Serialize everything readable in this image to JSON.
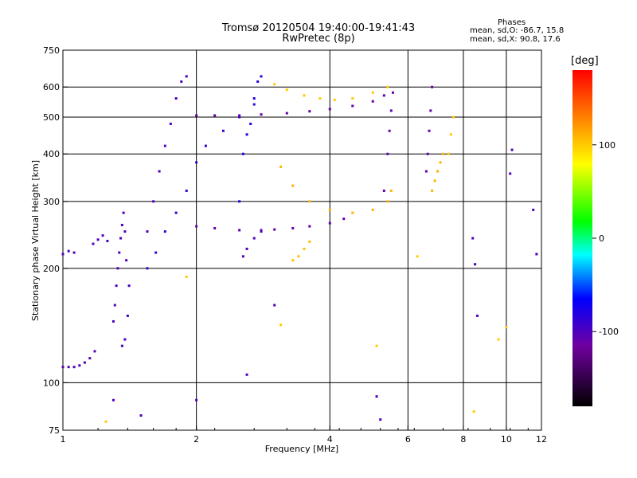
{
  "title": {
    "line1": "Tromsø 20120504 19:40:00-19:41:43",
    "line2": "RwPretec (8p)"
  },
  "phases": {
    "heading": "Phases",
    "o_line": "mean, sd,O: -86.7, 15.8",
    "x_line": "mean, sd,X:  90.8, 17.6"
  },
  "colorbar": {
    "label": "[deg]",
    "ticks": [
      100,
      0,
      -100
    ],
    "range": [
      -180,
      180
    ]
  },
  "chart_data": {
    "type": "scatter",
    "title": "Tromsø 20120504 19:40:00-19:41:43",
    "subtitle": "RwPretec (8p)",
    "xlabel": "Frequency [MHz]",
    "ylabel": "Stationary phase Virtual Height [km]",
    "xscale": "log",
    "yscale": "log",
    "xlim": [
      1,
      12
    ],
    "ylim": [
      75,
      750
    ],
    "xticks": [
      1,
      2,
      4,
      6,
      8,
      10,
      12
    ],
    "yticks": [
      75,
      100,
      200,
      300,
      400,
      500,
      600,
      750
    ],
    "grid": true,
    "colorbar_label": "[deg]",
    "colorbar_range": [
      -180,
      180
    ],
    "colormap": [
      "#000000",
      "#7000a0",
      "#0000ff",
      "#00ffff",
      "#00ff00",
      "#ffff00",
      "#ff8000",
      "#ff0000"
    ],
    "series": [
      {
        "x": [
          1.0,
          1.03,
          1.06,
          1.09,
          1.12,
          1.15,
          1.18
        ],
        "y": [
          110,
          110,
          110,
          111,
          113,
          116,
          121
        ],
        "phase": -105
      },
      {
        "x": [
          1.0,
          1.03,
          1.06,
          1.17,
          1.2,
          1.23,
          1.26
        ],
        "y": [
          218,
          222,
          220,
          232,
          238,
          244,
          236
        ],
        "phase": -100
      },
      {
        "x": [
          1.3,
          1.31,
          1.32,
          1.33,
          1.34,
          1.35,
          1.36,
          1.37,
          1.38,
          1.39
        ],
        "y": [
          145,
          160,
          180,
          200,
          220,
          240,
          260,
          280,
          250,
          210
        ],
        "phase": -100
      },
      {
        "x": [
          1.36,
          1.38,
          1.4,
          1.41
        ],
        "y": [
          125,
          130,
          150,
          180
        ],
        "phase": -95
      },
      {
        "x": [
          1.55,
          1.6,
          1.65,
          1.7,
          1.75,
          1.8,
          1.85,
          1.9
        ],
        "y": [
          250,
          300,
          360,
          420,
          480,
          560,
          620,
          640
        ],
        "phase": -100
      },
      {
        "x": [
          1.55,
          1.62,
          1.7,
          1.8,
          1.9,
          2.0,
          2.1,
          2.3,
          2.5,
          2.7
        ],
        "y": [
          200,
          220,
          250,
          280,
          320,
          380,
          420,
          460,
          500,
          540
        ],
        "phase": -90
      },
      {
        "x": [
          2.0,
          2.2,
          2.5,
          2.8,
          3.2,
          3.6,
          4.0,
          4.5,
          5.0,
          5.3
        ],
        "y": [
          505,
          505,
          505,
          508,
          512,
          518,
          525,
          535,
          550,
          570
        ],
        "phase": -110
      },
      {
        "x": [
          2.0,
          2.2,
          2.5,
          2.8,
          3.0,
          3.3,
          3.6,
          4.0,
          4.3
        ],
        "y": [
          258,
          255,
          252,
          252,
          253,
          255,
          258,
          263,
          270
        ],
        "phase": -110
      },
      {
        "x": [
          2.5,
          2.55,
          2.6,
          2.65,
          2.7,
          2.75,
          2.8
        ],
        "y": [
          300,
          400,
          450,
          480,
          560,
          620,
          640
        ],
        "phase": -80
      },
      {
        "x": [
          2.55,
          2.6,
          2.7,
          2.8
        ],
        "y": [
          215,
          225,
          240,
          250
        ],
        "phase": -100
      },
      {
        "x": [
          3.0,
          3.2,
          3.5,
          3.8,
          4.1,
          4.5,
          5.0,
          5.4
        ],
        "y": [
          610,
          590,
          570,
          560,
          555,
          560,
          580,
          600
        ],
        "phase": 100
      },
      {
        "x": [
          3.1,
          3.3,
          3.6,
          4.0,
          4.5,
          5.0,
          5.4,
          5.5
        ],
        "y": [
          370,
          330,
          300,
          285,
          280,
          285,
          300,
          320
        ],
        "phase": 110
      },
      {
        "x": [
          5.3,
          5.4,
          5.45,
          5.5,
          5.55
        ],
        "y": [
          320,
          400,
          460,
          520,
          580
        ],
        "phase": -110
      },
      {
        "x": [
          6.6,
          6.65,
          6.7,
          6.75,
          6.8
        ],
        "y": [
          360,
          400,
          460,
          520,
          600
        ],
        "phase": -110
      },
      {
        "x": [
          6.8,
          6.9,
          7.0,
          7.1,
          7.2
        ],
        "y": [
          320,
          340,
          360,
          380,
          400
        ],
        "phase": 110
      },
      {
        "x": [
          7.4,
          7.5,
          7.6
        ],
        "y": [
          400,
          450,
          500
        ],
        "phase": 100
      },
      {
        "x": [
          3.3,
          3.4,
          3.5,
          3.6
        ],
        "y": [
          210,
          215,
          225,
          235
        ],
        "phase": 105
      },
      {
        "x": [
          1.3,
          1.5,
          2.0,
          2.6,
          3.0,
          5.1,
          5.2,
          8.4,
          8.5,
          8.6,
          10.2,
          10.3,
          11.5,
          11.7
        ],
        "y": [
          90,
          82,
          90,
          105,
          160,
          92,
          80,
          240,
          205,
          150,
          355,
          410,
          285,
          218
        ],
        "phase": -100
      },
      {
        "x": [
          1.25,
          1.9,
          3.1,
          5.1,
          6.3,
          8.45,
          9.6,
          10.0
        ],
        "y": [
          79,
          190,
          142,
          125,
          215,
          84,
          130,
          140
        ],
        "phase": 100
      }
    ]
  }
}
